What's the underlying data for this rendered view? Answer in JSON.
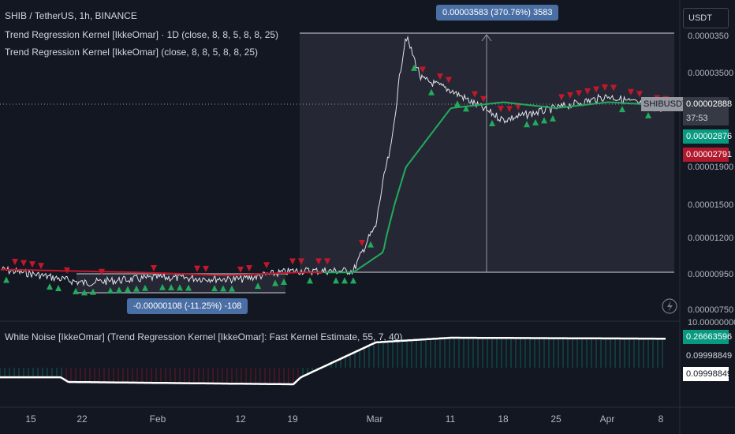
{
  "header": {
    "title": "SHIB / TetherUS, 1h, BINANCE",
    "indicator1": "Trend Regression Kernel [IkkeOmar] · 1D (close, 8, 8, 5, 8, 8, 25)",
    "indicator2": "Trend Regression Kernel [IkkeOmar] (close, 8, 8, 5, 8, 8, 25)"
  },
  "currency": "USDT",
  "symbol_tag": "SHIBUSDT",
  "last_price": "0.00002888",
  "countdown": "37:53",
  "green_line_price": "0.00002876",
  "red_line_price": "0.00002791",
  "measure_up": "0.00003583 (370.76%) 3583",
  "measure_down": "-0.00000108 (-11.25%) -108",
  "price_axis": [
    "0.0000350",
    "0.00003500",
    "0.00001900",
    "0.00001500",
    "0.00001200",
    "0.00000950",
    "0.00000750"
  ],
  "oscillator": {
    "title": "White Noise [IkkeOmar] (Trend Regression Kernel [IkkeOmar]: Fast Kernel Estimate, 55, 7, 40)",
    "top_tick": "10.00000000",
    "value_current": "0.26663596",
    "value_a": "0.09998849",
    "value_b": "0.09998849"
  },
  "time_axis": [
    "15",
    "22",
    "Feb",
    "12",
    "19",
    "Mar",
    "11",
    "18",
    "25",
    "Apr",
    "8"
  ],
  "colors": {
    "bg": "#131722",
    "up": "#089981",
    "down": "#f23645",
    "kernel": "#22ab5c",
    "badge": "#4a6fa5"
  },
  "chart_data": {
    "type": "line",
    "title": "SHIB / TetherUS, 1h, BINANCE",
    "x_ticks": [
      "15",
      "22",
      "Feb",
      "12",
      "19",
      "Mar",
      "11",
      "18",
      "25",
      "Apr",
      "8"
    ],
    "y_ticks": [
      7.5e-06,
      9.5e-06,
      1.2e-05,
      1.5e-05,
      1.9e-05,
      3.5e-05
    ],
    "series": [
      {
        "name": "Trend Regression Kernel [IkkeOmar] (close, 8, 8, 5, 8, 8, 25)",
        "x": [
          "Jan 11",
          "Jan 20",
          "Jan 29",
          "Feb 10",
          "Feb 20",
          "Feb 27",
          "Mar 2",
          "Mar 5",
          "Mar 11",
          "Mar 18",
          "Mar 25",
          "Apr 1",
          "Apr 8"
        ],
        "values": [
          9.8e-06,
          9.7e-06,
          9.6e-06,
          9.4e-06,
          9.6e-06,
          9.6e-06,
          1.1e-05,
          1.9e-05,
          2.9e-05,
          3e-05,
          2.9e-05,
          3e-05,
          2.95e-05
        ]
      },
      {
        "name": "SHIBUSDT",
        "x": [
          "Jan 11",
          "Jan 22",
          "Feb 1",
          "Feb 12",
          "Feb 19",
          "Feb 27",
          "Mar 1",
          "Mar 3",
          "Mar 5",
          "Mar 7",
          "Mar 11",
          "Mar 18",
          "Mar 25",
          "Apr 1",
          "Apr 8"
        ],
        "values": [
          9.8e-06,
          9e-06,
          9.3e-06,
          9.2e-06,
          9.7e-06,
          9.7e-06,
          1.3e-05,
          2.2e-05,
          4.3e-05,
          3.4e-05,
          3.2e-05,
          2.7e-05,
          2.9e-05,
          3.1e-05,
          2.89e-05
        ]
      }
    ],
    "oscillator_series": {
      "name": "White Noise [IkkeOmar]",
      "x": [
        "Jan 11",
        "Jan 19",
        "Jan 20",
        "Feb 19",
        "Feb 20",
        "Mar 1",
        "Mar 11",
        "Apr 8"
      ],
      "values": [
        0.1,
        0.1,
        0.08,
        0.07,
        0.1,
        0.25,
        0.27,
        0.266
      ]
    }
  }
}
